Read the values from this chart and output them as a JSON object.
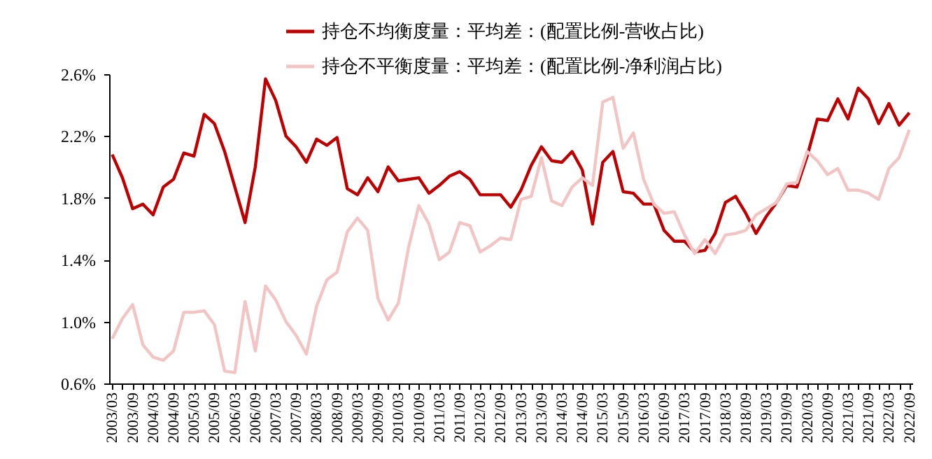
{
  "chart_data": {
    "type": "line",
    "categories": [
      "2003/03",
      null,
      "2003/09",
      null,
      "2004/03",
      null,
      "2004/09",
      null,
      "2005/03",
      null,
      "2005/09",
      null,
      "2006/03",
      null,
      "2006/09",
      null,
      "2007/03",
      null,
      "2007/09",
      null,
      "2008/03",
      null,
      "2008/09",
      null,
      "2009/03",
      null,
      "2009/09",
      null,
      "2010/03",
      null,
      "2010/09",
      null,
      "2011/03",
      null,
      "2011/09",
      null,
      "2012/03",
      null,
      "2012/09",
      null,
      "2013/03",
      null,
      "2013/09",
      null,
      "2014/03",
      null,
      "2014/09",
      null,
      "2015/03",
      null,
      "2015/09",
      null,
      "2016/03",
      null,
      "2016/09",
      null,
      "2017/03",
      null,
      "2017/09",
      null,
      "2018/03",
      null,
      "2018/09",
      null,
      "2019/03",
      null,
      "2019/09",
      null,
      "2020/03",
      null,
      "2020/09",
      null,
      "2021/03",
      null,
      "2021/09",
      null,
      "2022/03",
      null,
      "2022/09"
    ],
    "series": [
      {
        "name": "持仓不均衡度量：平均差：(配置比例-营收占比)",
        "color": "#c00000",
        "values": [
          2.08,
          1.93,
          1.73,
          1.76,
          1.69,
          1.87,
          1.92,
          2.09,
          2.07,
          2.34,
          2.28,
          2.1,
          1.87,
          1.64,
          2.0,
          2.57,
          2.43,
          2.2,
          2.13,
          2.03,
          2.18,
          2.14,
          2.19,
          1.86,
          1.82,
          1.93,
          1.84,
          2.0,
          1.91,
          1.92,
          1.93,
          1.83,
          1.88,
          1.94,
          1.97,
          1.92,
          1.82,
          1.82,
          1.82,
          1.74,
          1.85,
          2.01,
          2.13,
          2.04,
          2.03,
          2.1,
          1.98,
          1.63,
          2.03,
          2.1,
          1.84,
          1.83,
          1.76,
          1.76,
          1.59,
          1.52,
          1.52,
          1.45,
          1.46,
          1.57,
          1.77,
          1.81,
          1.7,
          1.57,
          1.68,
          1.77,
          1.88,
          1.87,
          2.07,
          2.31,
          2.3,
          2.44,
          2.31,
          2.51,
          2.44,
          2.28,
          2.41,
          2.27,
          2.35
        ]
      },
      {
        "name": "持仓不平衡度量：平均差：(配置比例-净利润占比)",
        "color": "#f2c4c4",
        "values": [
          0.89,
          1.02,
          1.11,
          0.85,
          0.77,
          0.75,
          0.81,
          1.06,
          1.06,
          1.07,
          0.98,
          0.68,
          0.67,
          1.13,
          0.81,
          1.23,
          1.14,
          1.0,
          0.91,
          0.79,
          1.1,
          1.27,
          1.32,
          1.58,
          1.67,
          1.59,
          1.15,
          1.01,
          1.12,
          1.48,
          1.75,
          1.63,
          1.4,
          1.45,
          1.64,
          1.62,
          1.45,
          1.49,
          1.54,
          1.53,
          1.79,
          1.81,
          2.06,
          1.78,
          1.75,
          1.87,
          1.93,
          1.88,
          2.42,
          2.45,
          2.12,
          2.22,
          1.92,
          1.76,
          1.7,
          1.71,
          1.56,
          1.44,
          1.53,
          1.44,
          1.56,
          1.57,
          1.59,
          1.69,
          1.73,
          1.77,
          1.89,
          1.9,
          2.1,
          2.04,
          1.95,
          1.99,
          1.85,
          1.85,
          1.83,
          1.79,
          1.99,
          2.06,
          2.24
        ]
      }
    ],
    "ylim": [
      0.6,
      2.6
    ],
    "yticks": [
      {
        "value": 0.6,
        "label": "0.6%"
      },
      {
        "value": 1.0,
        "label": "1.0%"
      },
      {
        "value": 1.4,
        "label": "1.4%"
      },
      {
        "value": 1.8,
        "label": "1.8%"
      },
      {
        "value": 2.2,
        "label": "2.2%"
      },
      {
        "value": 2.6,
        "label": "2.6%"
      }
    ],
    "grid": false,
    "legend": "top",
    "marker": "none",
    "line_style": "solid"
  }
}
